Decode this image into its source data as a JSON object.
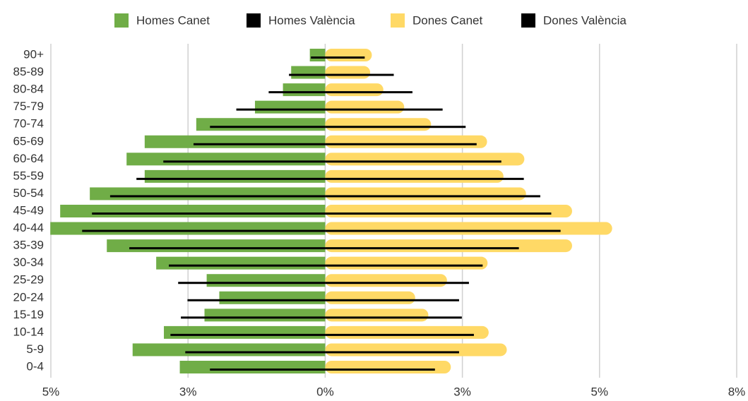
{
  "chart_data": {
    "type": "pyramid",
    "categories": [
      "90+",
      "85-89",
      "80-84",
      "75-79",
      "70-74",
      "65-69",
      "60-64",
      "55-59",
      "50-54",
      "45-49",
      "40-44",
      "35-39",
      "30-34",
      "25-29",
      "20-24",
      "15-19",
      "10-14",
      "5-9",
      "0-4"
    ],
    "series": [
      {
        "name": "Homes Canet",
        "color": "#70ad47",
        "style": "bar",
        "values": [
          -0.28,
          -0.62,
          -0.77,
          -1.28,
          -2.35,
          -3.29,
          -3.62,
          -3.29,
          -4.29,
          -4.83,
          -5.01,
          -3.98,
          -3.08,
          -2.16,
          -1.93,
          -2.2,
          -2.94,
          -3.51,
          -2.65
        ]
      },
      {
        "name": "Homes València",
        "color": "#000000",
        "style": "line",
        "values": [
          -0.26,
          -0.66,
          -1.03,
          -1.62,
          -2.1,
          -2.4,
          -2.95,
          -3.44,
          -3.92,
          -4.25,
          -4.43,
          -3.57,
          -2.85,
          -2.68,
          -2.51,
          -2.63,
          -2.82,
          -2.55,
          -2.1
        ]
      },
      {
        "name": "Dones Canet",
        "color": "#ffd966",
        "style": "bar",
        "values": [
          0.85,
          0.82,
          1.06,
          1.44,
          1.93,
          2.95,
          3.63,
          3.25,
          3.66,
          4.5,
          5.23,
          4.5,
          2.96,
          2.22,
          1.64,
          1.88,
          2.98,
          3.31,
          2.29
        ]
      },
      {
        "name": "Dones València",
        "color": "#000000",
        "style": "line",
        "values": [
          0.72,
          1.25,
          1.59,
          2.14,
          2.56,
          2.76,
          3.21,
          3.62,
          3.92,
          4.12,
          4.29,
          3.53,
          2.87,
          2.62,
          2.44,
          2.49,
          2.71,
          2.44,
          2.0
        ]
      }
    ],
    "xlim": [
      -5.0,
      7.5
    ],
    "xticks": [
      {
        "value": -5,
        "label": "5%"
      },
      {
        "value": -2.5,
        "label": "3%"
      },
      {
        "value": 0,
        "label": "0%"
      },
      {
        "value": 2.5,
        "label": "3%"
      },
      {
        "value": 5,
        "label": "5%"
      },
      {
        "value": 7.5,
        "label": "8%"
      }
    ],
    "grid": true,
    "legend": "top"
  }
}
